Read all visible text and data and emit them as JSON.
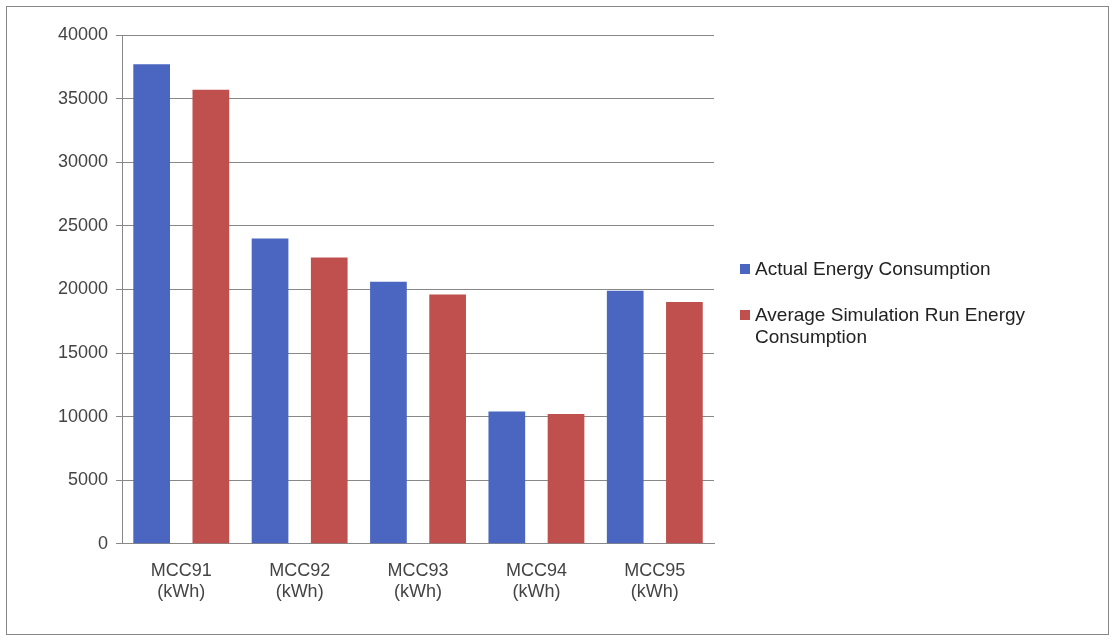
{
  "chart_data": {
    "type": "bar",
    "categories": [
      "MCC91 (kWh)",
      "MCC92 (kWh)",
      "MCC93 (kWh)",
      "MCC94 (kWh)",
      "MCC95 (kWh)"
    ],
    "series": [
      {
        "name": "Actual Energy Consumption",
        "color": "#4a66c0",
        "values": [
          37700,
          24000,
          20600,
          10400,
          19900
        ]
      },
      {
        "name": "Average Simulation Run Energy Consumption",
        "color": "#c0504d",
        "values": [
          35700,
          22500,
          19600,
          10200,
          19000
        ]
      }
    ],
    "ylim": [
      0,
      40000
    ],
    "yticks": [
      0,
      5000,
      10000,
      15000,
      20000,
      25000,
      30000,
      35000,
      40000
    ],
    "grid": "y",
    "legend": "right"
  }
}
